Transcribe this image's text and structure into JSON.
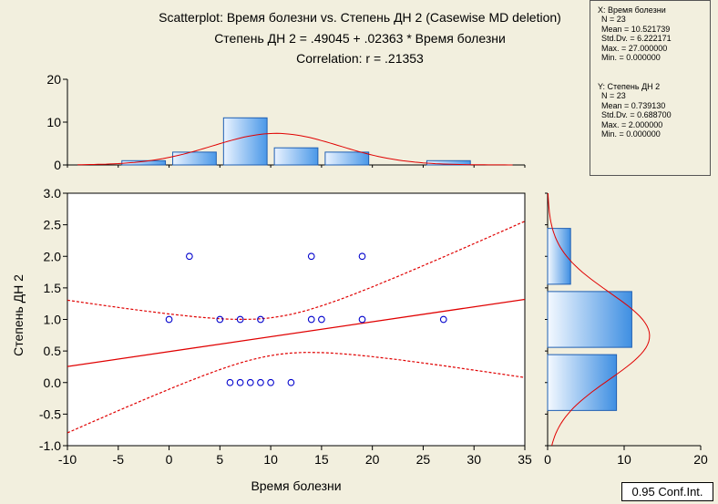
{
  "title": {
    "line1": "Scatterplot: Время болезни vs. Степень ДН 2 (Casewise MD deletion)",
    "line2": "Степень ДН 2 = .49045 + .02363 * Время болезни",
    "line3": "Correlation: r = .21353"
  },
  "stats": {
    "x": {
      "header": "X:  Время болезни",
      "lines": [
        "N = 23",
        "Mean = 10.521739",
        "Std.Dv. = 6.222171",
        "Max. = 27.000000",
        "Min. = 0.000000"
      ]
    },
    "y": {
      "header": "Y:  Степень ДН 2",
      "lines": [
        "N = 23",
        "Mean = 0.739130",
        "Std.Dv. = 0.688700",
        "Max. = 2.000000",
        "Min. = 0.000000"
      ]
    }
  },
  "ci_label": "0.95 Conf.Int.",
  "colors": {
    "background": "#f2efde",
    "plot_bg": "#ffffff",
    "points": "#0000cc",
    "fit_line": "#e00000",
    "bar_edge": "#1f5fb3",
    "bar_fill_light": "#eaf3ff",
    "bar_fill_dark": "#4a98e8"
  },
  "chart_data": [
    {
      "type": "scatter",
      "xlabel": "Время болезни",
      "ylabel": "Степень ДН 2",
      "xlim": [
        -10,
        35
      ],
      "ylim": [
        -1,
        3
      ],
      "xticks": [
        "-10",
        "-5",
        "0",
        "5",
        "10",
        "15",
        "20",
        "25",
        "30",
        "35"
      ],
      "yticks": [
        "-1.0",
        "-0.5",
        "0.0",
        "0.5",
        "1.0",
        "1.5",
        "2.0",
        "2.5",
        "3.0"
      ],
      "points": [
        [
          2,
          2
        ],
        [
          14,
          2
        ],
        [
          19,
          2
        ],
        [
          0,
          1
        ],
        [
          5,
          1
        ],
        [
          7,
          1
        ],
        [
          9,
          1
        ],
        [
          14,
          1
        ],
        [
          15,
          1
        ],
        [
          19,
          1
        ],
        [
          27,
          1
        ],
        [
          6,
          0
        ],
        [
          7,
          0
        ],
        [
          8,
          0
        ],
        [
          9,
          0
        ],
        [
          10,
          0
        ],
        [
          12,
          0
        ]
      ],
      "regression": {
        "intercept": 0.49045,
        "slope": 0.02363
      },
      "confidence": 0.95,
      "n": 23,
      "x_mean": 10.521739,
      "x_sd": 6.222171,
      "y_sd": 0.6887
    },
    {
      "type": "bar",
      "name": "histogram-x",
      "bins": [
        {
          "from": -5,
          "to": 0,
          "count": 1
        },
        {
          "from": 0,
          "to": 5,
          "count": 3
        },
        {
          "from": 5,
          "to": 10,
          "count": 11
        },
        {
          "from": 10,
          "to": 15,
          "count": 4
        },
        {
          "from": 15,
          "to": 20,
          "count": 3
        },
        {
          "from": 20,
          "to": 25,
          "count": 0
        },
        {
          "from": 25,
          "to": 30,
          "count": 1
        }
      ],
      "ylim": [
        0,
        20
      ],
      "yticks": [
        "0",
        "10",
        "20"
      ],
      "normal_fit": {
        "mean": 10.521739,
        "sd": 6.222171,
        "n": 23,
        "binwidth": 5
      }
    },
    {
      "type": "bar",
      "name": "histogram-y",
      "orientation": "horizontal",
      "bins": [
        {
          "from": -0.5,
          "to": 0.5,
          "count": 9
        },
        {
          "from": 0.5,
          "to": 1.5,
          "count": 11
        },
        {
          "from": 1.5,
          "to": 2.5,
          "count": 3
        }
      ],
      "xlim": [
        0,
        20
      ],
      "xticks": [
        "0",
        "10",
        "20"
      ],
      "normal_fit": {
        "mean": 0.73913,
        "sd": 0.6887,
        "n": 23,
        "binwidth": 1
      }
    }
  ]
}
